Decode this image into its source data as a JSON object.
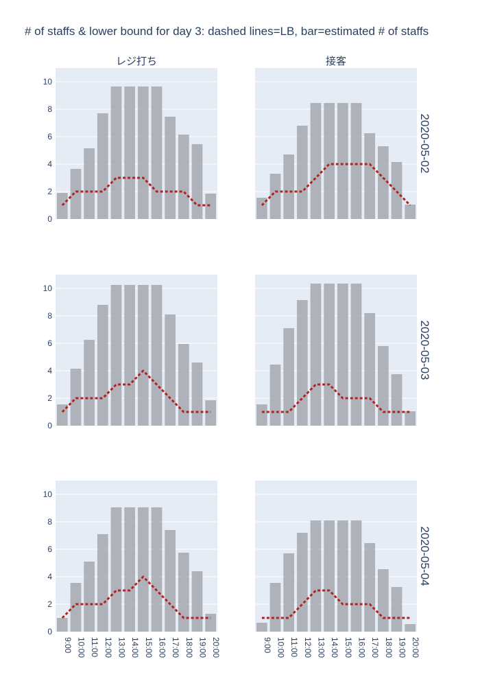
{
  "chart_data": {
    "type": "bar",
    "title": "# of staffs & lower bound for day 3: dashed lines=LB, bar=estimated # of staffs",
    "categories": [
      "9:00",
      "10:00",
      "11:00",
      "12:00",
      "13:00",
      "14:00",
      "15:00",
      "16:00",
      "17:00",
      "18:00",
      "19:00",
      "20:00"
    ],
    "ylim": [
      0,
      11
    ],
    "yticks": [
      0,
      2,
      4,
      6,
      8,
      10
    ],
    "grid": true,
    "columns": [
      "レジ打ち",
      "接客"
    ],
    "rows": [
      "2020-05-02",
      "2020-05-03",
      "2020-05-04"
    ],
    "colors": {
      "bar": "#a6a8ae",
      "lb_line": "#b22222",
      "plot_bg": "#e5ecf6",
      "grid": "#ffffff",
      "text": "#2a3f5f"
    },
    "panels": [
      {
        "row": "2020-05-02",
        "column": "レジ打ち",
        "bar_values": [
          1.9,
          3.65,
          5.15,
          7.7,
          9.65,
          9.65,
          9.65,
          9.65,
          7.45,
          6.15,
          5.45,
          1.85
        ],
        "lb_values": [
          1,
          2,
          2,
          2,
          3,
          3,
          3,
          2,
          2,
          2,
          1,
          1
        ]
      },
      {
        "row": "2020-05-02",
        "column": "接客",
        "bar_values": [
          1.55,
          3.3,
          4.7,
          6.8,
          8.45,
          8.45,
          8.45,
          8.45,
          6.25,
          5.3,
          4.15,
          1.05
        ],
        "lb_values": [
          1,
          2,
          2,
          2,
          3,
          4,
          4,
          4,
          4,
          3,
          2,
          1
        ]
      },
      {
        "row": "2020-05-03",
        "column": "レジ打ち",
        "bar_values": [
          1.55,
          4.15,
          6.25,
          8.8,
          10.25,
          10.25,
          10.25,
          10.25,
          8.1,
          5.95,
          4.6,
          1.85
        ],
        "lb_values": [
          1,
          2,
          2,
          2,
          3,
          3,
          4,
          3,
          2,
          1,
          1,
          1
        ]
      },
      {
        "row": "2020-05-03",
        "column": "接客",
        "bar_values": [
          1.55,
          4.45,
          7.1,
          9.15,
          10.35,
          10.35,
          10.35,
          10.35,
          8.2,
          5.8,
          3.75,
          1.05
        ],
        "lb_values": [
          1,
          1,
          1,
          2,
          3,
          3,
          2,
          2,
          2,
          1,
          1,
          1
        ]
      },
      {
        "row": "2020-05-04",
        "column": "レジ打ち",
        "bar_values": [
          1.0,
          3.55,
          5.1,
          7.1,
          9.05,
          9.05,
          9.05,
          9.05,
          7.4,
          5.75,
          4.4,
          1.3
        ],
        "lb_values": [
          1,
          2,
          2,
          2,
          3,
          3,
          4,
          3,
          2,
          1,
          1,
          1
        ]
      },
      {
        "row": "2020-05-04",
        "column": "接客",
        "bar_values": [
          0.65,
          3.55,
          5.7,
          7.2,
          8.1,
          8.1,
          8.1,
          8.1,
          6.45,
          4.55,
          3.25,
          0.55
        ],
        "lb_values": [
          1,
          1,
          1,
          2,
          3,
          3,
          2,
          2,
          2,
          1,
          1,
          1
        ]
      }
    ]
  }
}
